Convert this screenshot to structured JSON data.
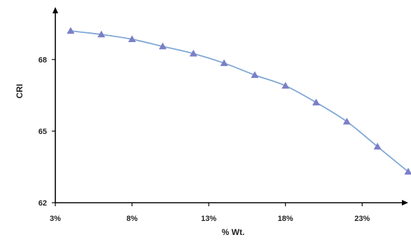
{
  "chart_data": {
    "type": "line",
    "title": "",
    "xlabel": "% Wt.",
    "ylabel": "CRI",
    "x": [
      4,
      6,
      8,
      10,
      12,
      14,
      16,
      18,
      20,
      22,
      24,
      26
    ],
    "series": [
      {
        "values": [
          69.2,
          69.05,
          68.85,
          68.55,
          68.25,
          67.85,
          67.35,
          66.9,
          66.2,
          65.4,
          64.35,
          63.3
        ]
      }
    ],
    "xlim": [
      3,
      26
    ],
    "ylim": [
      62,
      70.2
    ],
    "x_ticks": [
      3,
      8,
      13,
      18,
      23
    ],
    "x_tick_labels": [
      "3%",
      "8%",
      "13%",
      "18%",
      "23%"
    ],
    "y_ticks": [
      62,
      65,
      68
    ],
    "y_tick_labels": [
      "62",
      "65",
      "68"
    ],
    "line_color": "#7fa7d6",
    "marker_color": "#7b7fc6",
    "marker": "triangle",
    "grid": false,
    "legend": "none"
  }
}
